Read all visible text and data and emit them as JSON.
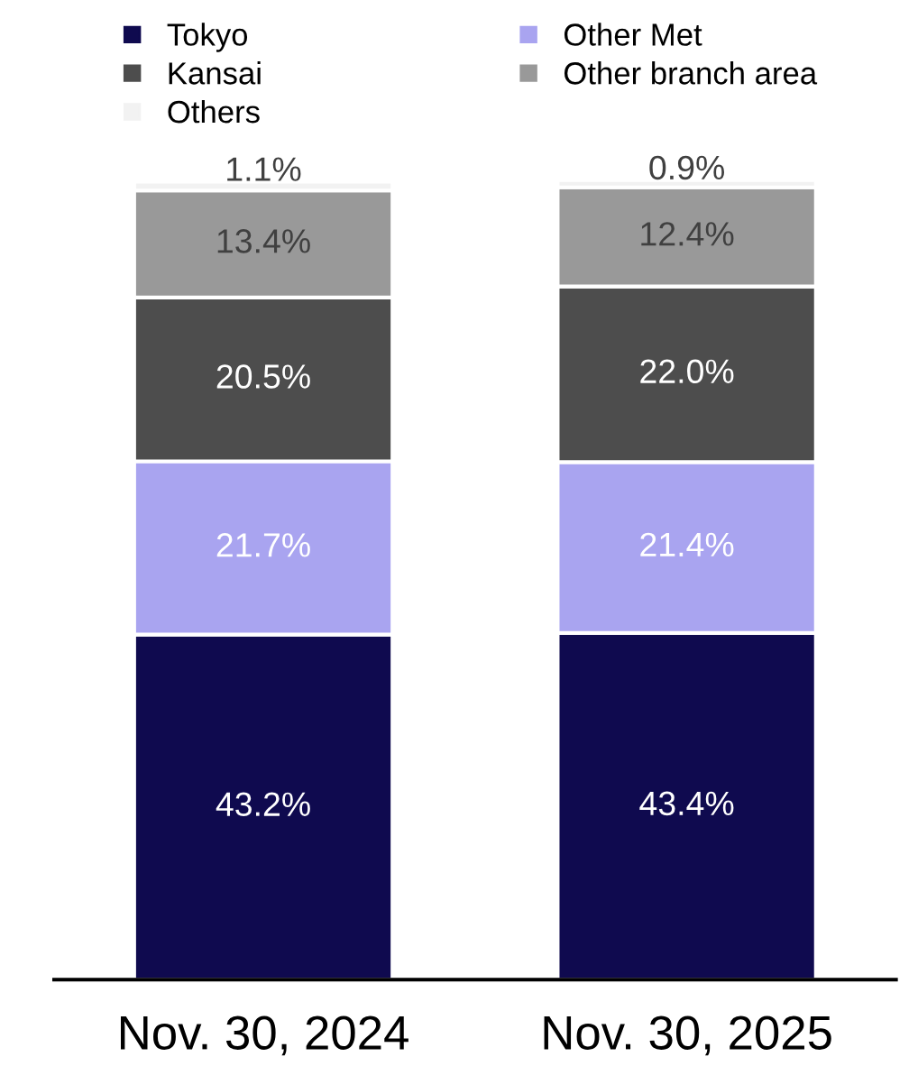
{
  "chart_data": {
    "type": "bar",
    "stacked": true,
    "legend": "top",
    "categories": [
      "Nov. 30, 2024",
      "Nov. 30, 2025"
    ],
    "series": [
      {
        "name": "Tokyo",
        "color": "#0f0a4f",
        "values": [
          43.2,
          43.4
        ],
        "value_labels": [
          "43.2%",
          "43.4%"
        ]
      },
      {
        "name": "Other Met",
        "color": "#a9a4f0",
        "values": [
          21.7,
          21.4
        ],
        "value_labels": [
          "21.7%",
          "21.4%"
        ]
      },
      {
        "name": "Kansai",
        "color": "#4d4d4d",
        "values": [
          20.5,
          22.0
        ],
        "value_labels": [
          "20.5%",
          "22.0%"
        ]
      },
      {
        "name": "Other branch area",
        "color": "#999999",
        "values": [
          13.4,
          12.4
        ],
        "value_labels": [
          "13.4%",
          "12.4%"
        ]
      },
      {
        "name": "Others",
        "color": "#f2f2f2",
        "values": [
          1.1,
          0.9
        ],
        "value_labels": [
          "1.1%",
          "0.9%"
        ]
      }
    ]
  }
}
